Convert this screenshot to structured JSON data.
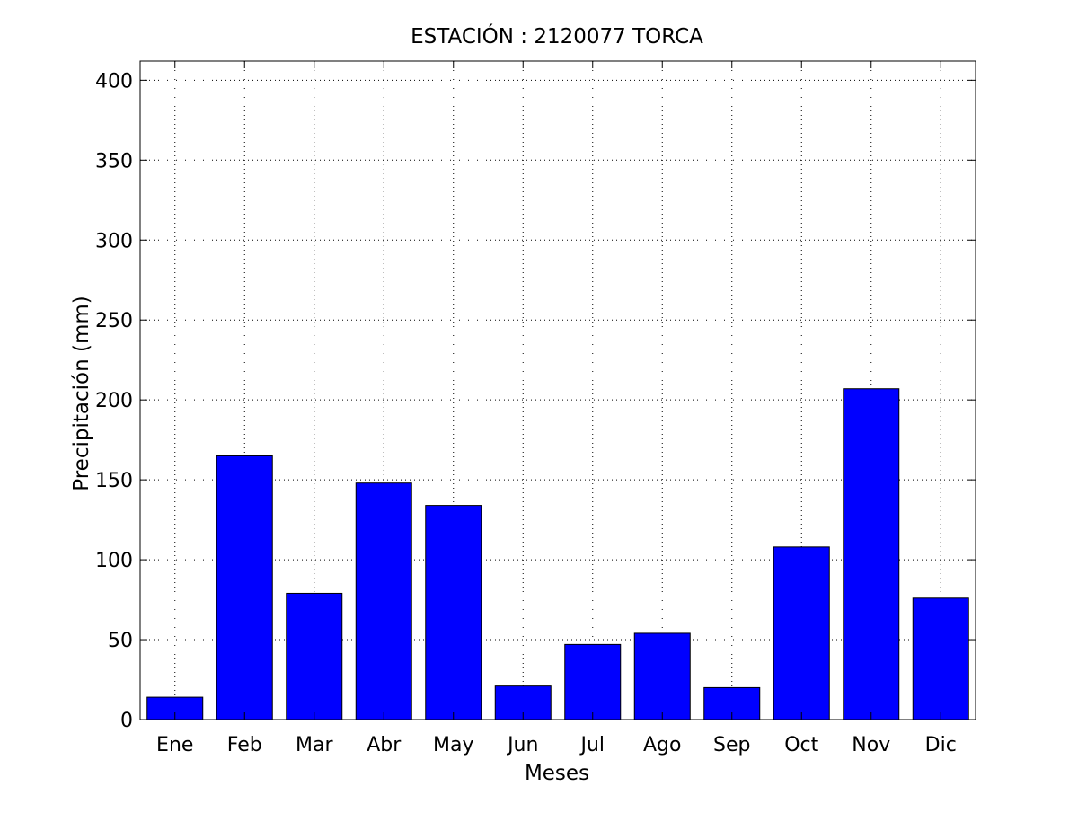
{
  "chart_data": {
    "type": "bar",
    "title": "ESTACIÓN : 2120077  TORCA",
    "xlabel": "Meses",
    "ylabel": "Precipitación (mm)",
    "categories": [
      "Ene",
      "Feb",
      "Mar",
      "Abr",
      "May",
      "Jun",
      "Jul",
      "Ago",
      "Sep",
      "Oct",
      "Nov",
      "Dic"
    ],
    "values": [
      14,
      165,
      79,
      148,
      134,
      21,
      47,
      54,
      20,
      108,
      207,
      76
    ],
    "ylim": [
      0,
      412
    ],
    "yticks": [
      0,
      50,
      100,
      150,
      200,
      250,
      300,
      350,
      400
    ],
    "ytick_labels": [
      "0",
      "50",
      "100",
      "150",
      "200",
      "250",
      "300",
      "350",
      "400"
    ],
    "grid": true,
    "bar_color": "#0000ff",
    "edge_color": "#000000"
  }
}
